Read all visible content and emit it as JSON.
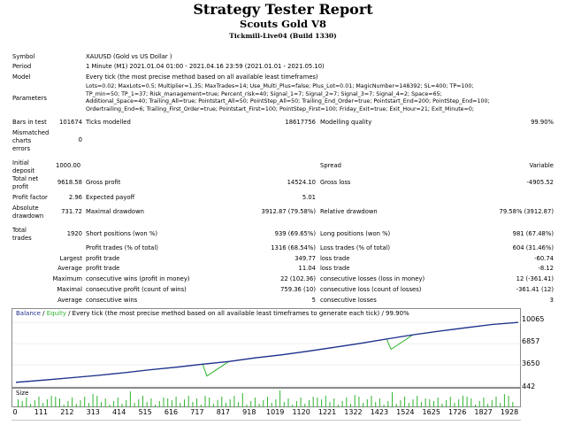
{
  "header": {
    "title": "Strategy Tester Report",
    "subtitle": "Scouts Gold V8",
    "server": "Tickmill-Live04 (Build 1330)"
  },
  "report": {
    "symbol_label": "Symbol",
    "symbol_value": "XAUUSD (Gold vs US Dollar )",
    "period_label": "Period",
    "period_value": "1 Minute (M1) 2021.01.04 01:00 - 2021.04.16 23:59 (2021.01.01 - 2021.05.10)",
    "model_label": "Model",
    "model_value": "Every tick (the most precise method based on all available least timeframes)",
    "parameters_label": "Parameters",
    "parameters_lines": [
      "Lots=0.02; MaxLots=0.5; Multiplier=1.35; MaxTrades=14; Use_Multi_Plus=false; Plus_Lot=0.01; MagicNumber=148392; SL=400; TP=100;",
      "TP_min=50; TP_1=37; Risk_management=true; Percent_risk=40; Signal_1=7; Signal_2=7; Signal_3=7; Signal_4=2; Space=65;",
      "Additional_Space=40; Trailing_All=true; Pointstart_All=50; PointStep_All=50; Trailing_End_Order=true; Pointstart_End=200; PointStep_End=100;",
      "Ordertrailing_End=6; Trailing_First_Order=true; Pointstart_First=100; PointStep_First=100; Friday_Exit=true; Exit_Hour=21; Exit_Minute=0;"
    ],
    "bars_label": "Bars in test",
    "bars_value": "101674",
    "ticks_label": "Ticks modelled",
    "ticks_value": "18617756",
    "quality_label": "Modelling quality",
    "quality_value": "99.90%",
    "mismatched_label": [
      "Mismatched",
      "charts",
      "errors"
    ],
    "mismatched_value": "0",
    "initial_deposit_label": [
      "Initial",
      "deposit"
    ],
    "initial_deposit_value": "1000.00",
    "spread_label": "Spread",
    "spread_value": "Variable",
    "net_profit_label": [
      "Total net",
      "profit"
    ],
    "net_profit_value": "9618.58",
    "gross_profit_label": "Gross profit",
    "gross_profit_value": "14524.10",
    "gross_loss_label": "Gross loss",
    "gross_loss_value": "-4905.52",
    "profit_factor_label": "Profit factor",
    "profit_factor_value": "2.96",
    "expected_payoff_label": "Expected payoff",
    "expected_payoff_value": "5.01",
    "abs_drawdown_label": [
      "Absolute",
      "drawdown"
    ],
    "abs_drawdown_value": "731.72",
    "max_drawdown_label": "Maximal drawdown",
    "max_drawdown_value": "3912.87 (79.58%)",
    "rel_drawdown_label": "Relative drawdown",
    "rel_drawdown_value": "79.58% (3912.87)",
    "total_trades_label": [
      "Total",
      "trades"
    ],
    "total_trades_value": "1920",
    "short_label": "Short positions (won %)",
    "short_value": "939 (69.65%)",
    "long_label": "Long positions (won %)",
    "long_value": "981 (67.48%)",
    "profit_trades_label": "Profit trades (% of total)",
    "profit_trades_value": "1316 (68.54%)",
    "loss_trades_label": "Loss trades (% of total)",
    "loss_trades_value": "604 (31.46%)",
    "largest_label": "Largest",
    "largest_profit_label": "profit trade",
    "largest_profit_value": "349.77",
    "largest_loss_label": "loss trade",
    "largest_loss_value": "-60.74",
    "average_label": "Average",
    "average_profit_label": "profit trade",
    "average_profit_value": "11.04",
    "average_loss_label": "loss trade",
    "average_loss_value": "-8.12",
    "maximum_label": "Maximum",
    "max_cons_wins_label": "consecutive wins (profit in money)",
    "max_cons_wins_value": "22 (102.36)",
    "max_cons_losses_label": "consecutive losses (loss in money)",
    "max_cons_losses_value": "12 (-361.41)",
    "maximal_label": "Maximal",
    "maximal_cons_profit_label": "consecutive profit (count of wins)",
    "maximal_cons_profit_value": "759.36 (10)",
    "maximal_cons_loss_label": "consecutive loss (count of losses)",
    "maximal_cons_loss_value": "-361.41 (12)",
    "avg_label": "Average",
    "avg_cons_wins_label": "consecutive wins",
    "avg_cons_wins_value": "5",
    "avg_cons_losses_label": "consecutive losses",
    "avg_cons_losses_value": "3"
  },
  "chart": {
    "legend_balance": "Balance",
    "legend_sep": " / ",
    "legend_equity": "Equity",
    "legend_rest": " / Every tick (the most precise method based on all available least timeframes to generate each tick) / 99.90%",
    "balance_color": "#1f2f8f",
    "equity_color": "#2fb52f",
    "size_label": "Size",
    "y_ticks": [
      "10065",
      "6857",
      "3650",
      "442"
    ],
    "x_ticks": [
      "0",
      "111",
      "212",
      "313",
      "414",
      "515",
      "616",
      "717",
      "817",
      "918",
      "1019",
      "1120",
      "1221",
      "1322",
      "1423",
      "1524",
      "1625",
      "1726",
      "1827",
      "1928"
    ]
  },
  "chart_data": {
    "type": "line",
    "title": "",
    "xlabel": "",
    "ylabel": "",
    "xlim": [
      0,
      1928
    ],
    "ylim": [
      442,
      10620
    ],
    "series": [
      {
        "name": "Balance",
        "x": [
          0,
          111,
          212,
          313,
          414,
          515,
          616,
          717,
          817,
          918,
          1019,
          1120,
          1221,
          1322,
          1423,
          1524,
          1625,
          1726,
          1827,
          1928
        ],
        "values": [
          1000,
          1350,
          1700,
          2050,
          2450,
          2900,
          3300,
          3750,
          4150,
          4700,
          5150,
          5700,
          6300,
          6900,
          7550,
          8200,
          8750,
          9250,
          9750,
          10065
        ]
      },
      {
        "name": "Equity",
        "x": [
          0,
          111,
          212,
          313,
          414,
          515,
          616,
          717,
          733,
          817,
          918,
          1019,
          1120,
          1221,
          1322,
          1423,
          1440,
          1524,
          1625,
          1726,
          1827,
          1928
        ],
        "values": [
          1000,
          1350,
          1700,
          2050,
          2450,
          2900,
          3300,
          3750,
          1950,
          4150,
          4700,
          5150,
          5700,
          6300,
          6900,
          7550,
          6000,
          8200,
          8750,
          9250,
          9750,
          10065
        ]
      }
    ]
  }
}
